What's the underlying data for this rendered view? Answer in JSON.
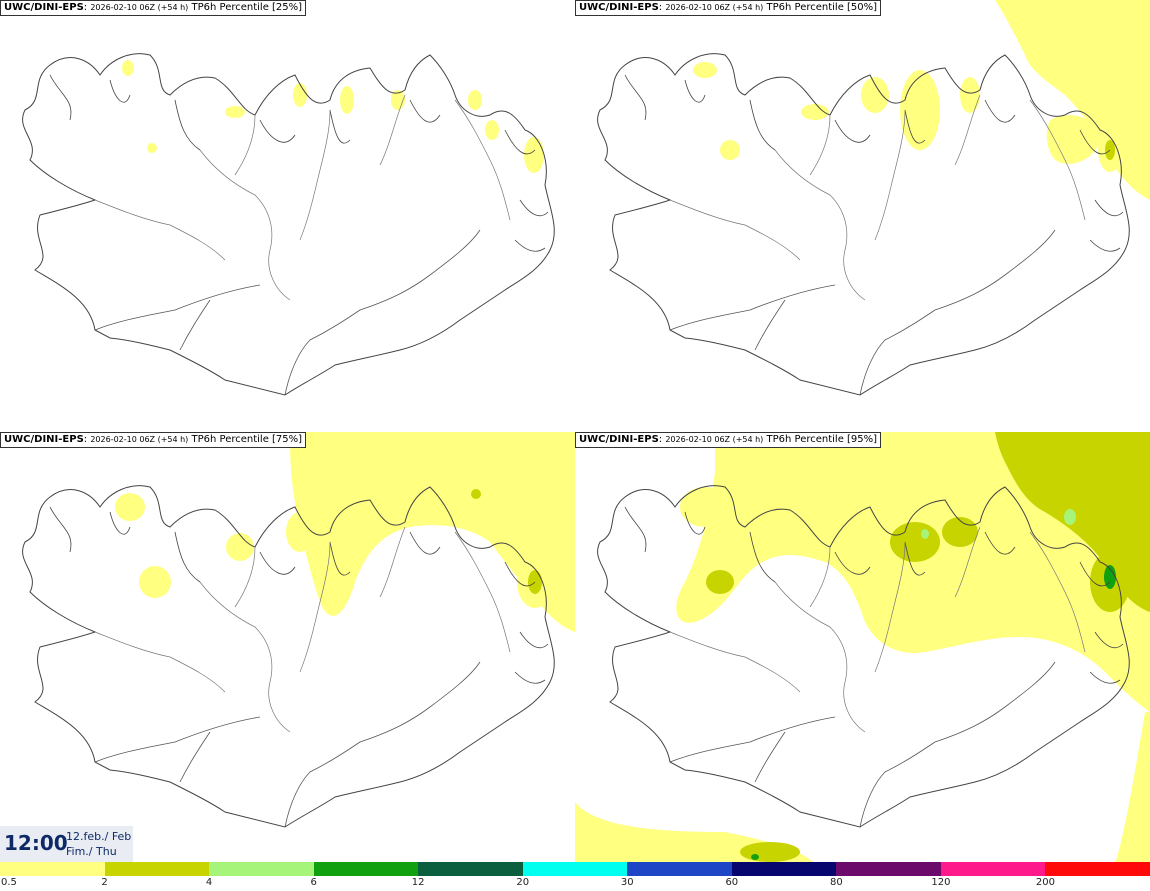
{
  "panels": [
    {
      "model": "UWC/DINI-EPS",
      "run": "2026-02-10 06Z (+54 h)",
      "param": "TP6h Percentile [25%]"
    },
    {
      "model": "UWC/DINI-EPS",
      "run": "2026-02-10 06Z (+54 h)",
      "param": "TP6h Percentile [50%]"
    },
    {
      "model": "UWC/DINI-EPS",
      "run": "2026-02-10 06Z (+54 h)",
      "param": "TP6h Percentile [75%]"
    },
    {
      "model": "UWC/DINI-EPS",
      "run": "2026-02-10 06Z (+54 h)",
      "param": "TP6h Percentile [95%]"
    }
  ],
  "valid_time": {
    "time": "12:00",
    "date_line1": "12.feb./ Feb",
    "date_line2": "Fim./ Thu"
  },
  "legend": {
    "bins": [
      {
        "from": "0.5",
        "color": "#ffff80"
      },
      {
        "from": "2",
        "color": "#c8d400"
      },
      {
        "from": "4",
        "color": "#a6f57a"
      },
      {
        "from": "6",
        "color": "#10a010"
      },
      {
        "from": "12",
        "color": "#0b5f3f"
      },
      {
        "from": "20",
        "color": "#00ffee"
      },
      {
        "from": "30",
        "color": "#1d45c6"
      },
      {
        "from": "60",
        "color": "#06066e"
      },
      {
        "from": "80",
        "color": "#6b0a6b"
      },
      {
        "from": "120",
        "color": "#ff1a8c"
      },
      {
        "from": "200",
        "color": "#ff0a0a"
      }
    ]
  },
  "colors": {
    "coastline": "#444444",
    "roads": "#666666",
    "precip_light": "#ffff80",
    "precip_moderate": "#c8d400"
  }
}
